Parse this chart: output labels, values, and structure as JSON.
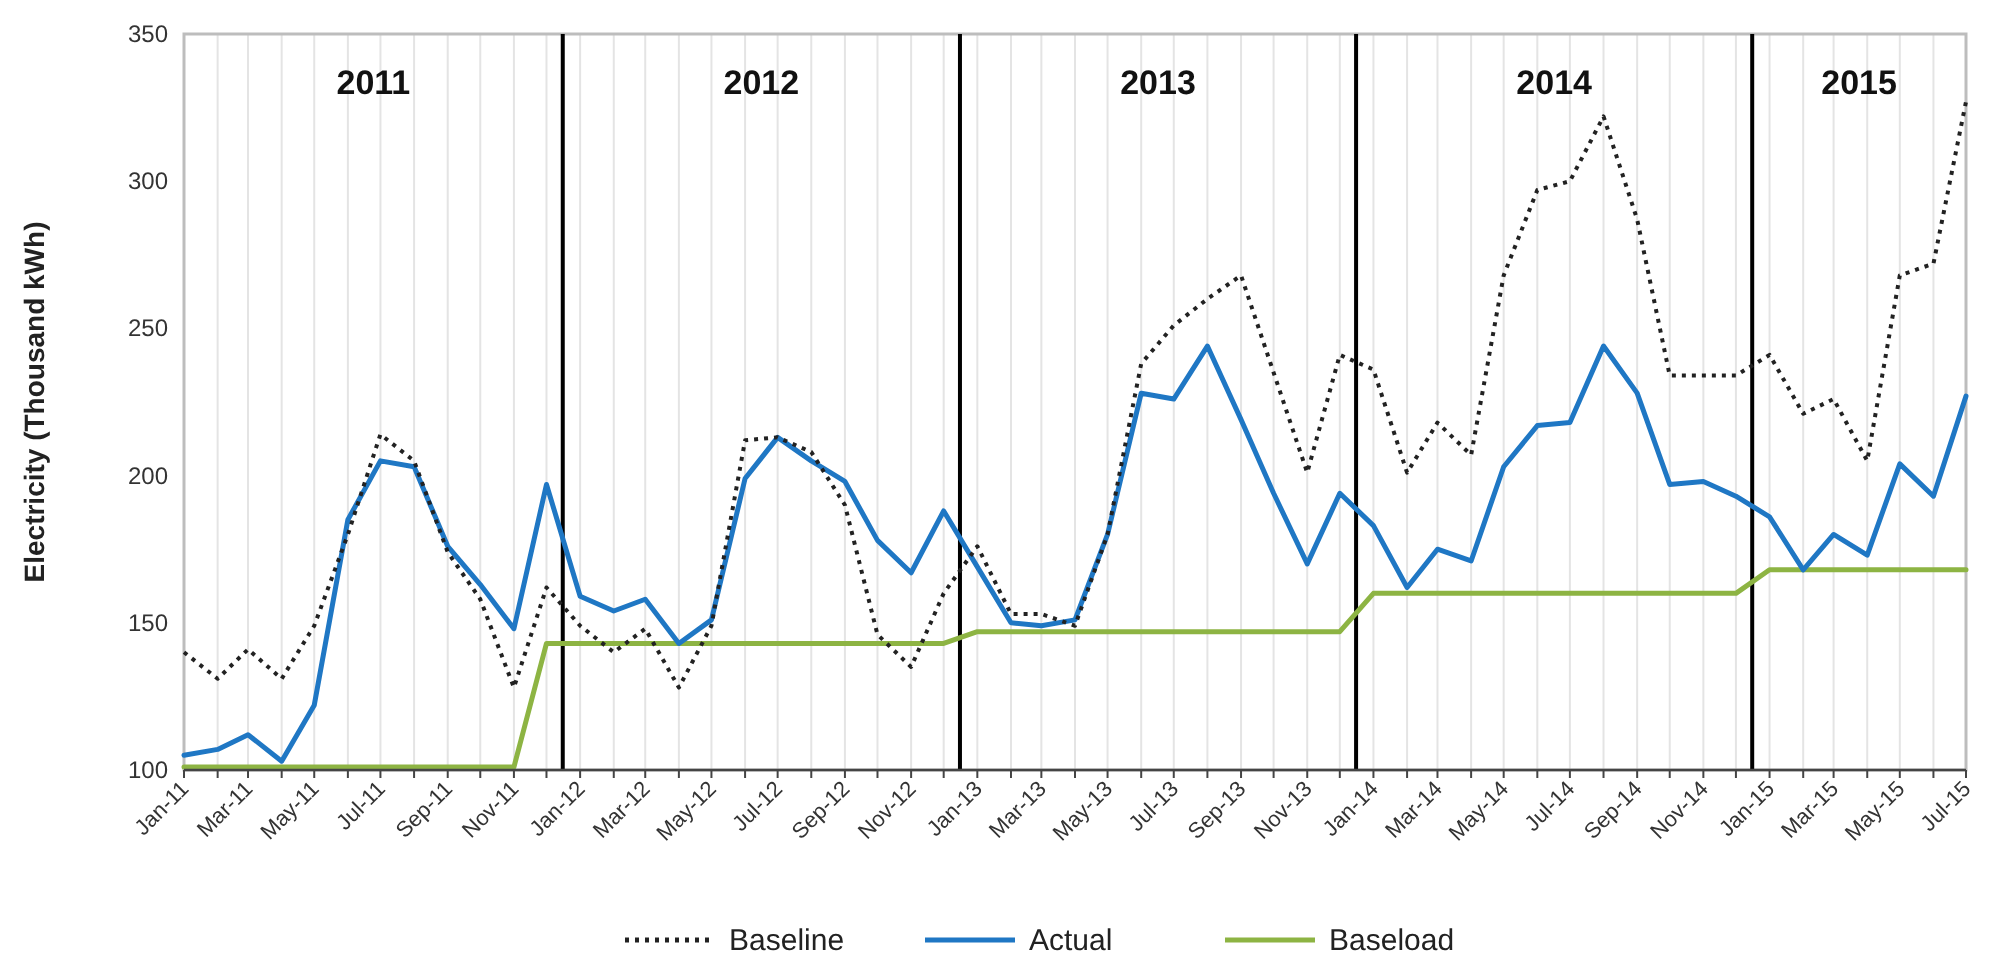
{
  "chart_data": {
    "type": "line",
    "ylabel": "Electricity (Thousand kWh)",
    "x": [
      "2011-01",
      "2011-02",
      "2011-03",
      "2011-04",
      "2011-05",
      "2011-06",
      "2011-07",
      "2011-08",
      "2011-09",
      "2011-10",
      "2011-11",
      "2011-12",
      "2012-01",
      "2012-02",
      "2012-03",
      "2012-04",
      "2012-05",
      "2012-06",
      "2012-07",
      "2012-08",
      "2012-09",
      "2012-10",
      "2012-11",
      "2012-12",
      "2013-01",
      "2013-02",
      "2013-03",
      "2013-04",
      "2013-05",
      "2013-06",
      "2013-07",
      "2013-08",
      "2013-09",
      "2013-10",
      "2013-11",
      "2013-12",
      "2014-01",
      "2014-02",
      "2014-03",
      "2014-04",
      "2014-05",
      "2014-06",
      "2014-07",
      "2014-08",
      "2014-09",
      "2014-10",
      "2014-11",
      "2014-12",
      "2015-01",
      "2015-02",
      "2015-03",
      "2015-04",
      "2015-05",
      "2015-06",
      "2015-07"
    ],
    "series": [
      {
        "name": "Baseline",
        "color": "#222222",
        "line_style": "dotted",
        "values": [
          140,
          131,
          141,
          131,
          149,
          180,
          214,
          205,
          174,
          158,
          128,
          162,
          149,
          140,
          148,
          128,
          149,
          212,
          213,
          208,
          190,
          146,
          135,
          160,
          176,
          153,
          153,
          149,
          180,
          238,
          251,
          260,
          268,
          235,
          201,
          241,
          236,
          201,
          218,
          207,
          268,
          297,
          300,
          322,
          287,
          234,
          234,
          234,
          241,
          221,
          226,
          205,
          268,
          272,
          327
        ]
      },
      {
        "name": "Actual",
        "color": "#1f77c4",
        "line_style": "solid",
        "values": [
          105,
          107,
          112,
          103,
          122,
          185,
          205,
          203,
          176,
          163,
          148,
          197,
          159,
          154,
          158,
          143,
          151,
          199,
          213,
          205,
          198,
          178,
          167,
          188,
          169,
          150,
          149,
          151,
          180,
          228,
          226,
          244,
          219,
          194,
          170,
          194,
          183,
          162,
          175,
          171,
          203,
          217,
          218,
          244,
          228,
          197,
          198,
          193,
          186,
          168,
          180,
          173,
          204,
          193,
          227
        ]
      },
      {
        "name": "Baseload",
        "color": "#8db443",
        "line_style": "solid",
        "values": [
          101,
          101,
          101,
          101,
          101,
          101,
          101,
          101,
          101,
          101,
          101,
          143,
          143,
          143,
          143,
          143,
          143,
          143,
          143,
          143,
          143,
          143,
          143,
          143,
          147,
          147,
          147,
          147,
          147,
          147,
          147,
          147,
          147,
          147,
          147,
          147,
          160,
          160,
          160,
          160,
          160,
          160,
          160,
          160,
          160,
          160,
          160,
          160,
          168,
          168,
          168,
          168,
          168,
          168,
          168
        ]
      }
    ],
    "xlim": [
      "2011-01",
      "2015-07"
    ],
    "xticks": [
      {
        "value": "2011-01",
        "label": "Jan-11"
      },
      {
        "value": "2011-02",
        "label": null
      },
      {
        "value": "2011-03",
        "label": "Mar-11"
      },
      {
        "value": "2011-04",
        "label": null
      },
      {
        "value": "2011-05",
        "label": "May-11"
      },
      {
        "value": "2011-06",
        "label": null
      },
      {
        "value": "2011-07",
        "label": "Jul-11"
      },
      {
        "value": "2011-08",
        "label": null
      },
      {
        "value": "2011-09",
        "label": "Sep-11"
      },
      {
        "value": "2011-10",
        "label": null
      },
      {
        "value": "2011-11",
        "label": "Nov-11"
      },
      {
        "value": "2011-12",
        "label": null
      },
      {
        "value": "2012-01",
        "label": "Jan-12"
      },
      {
        "value": "2012-02",
        "label": null
      },
      {
        "value": "2012-03",
        "label": "Mar-12"
      },
      {
        "value": "2012-04",
        "label": null
      },
      {
        "value": "2012-05",
        "label": "May-12"
      },
      {
        "value": "2012-06",
        "label": null
      },
      {
        "value": "2012-07",
        "label": "Jul-12"
      },
      {
        "value": "2012-08",
        "label": null
      },
      {
        "value": "2012-09",
        "label": "Sep-12"
      },
      {
        "value": "2012-10",
        "label": null
      },
      {
        "value": "2012-11",
        "label": "Nov-12"
      },
      {
        "value": "2012-12",
        "label": null
      },
      {
        "value": "2013-01",
        "label": "Jan-13"
      },
      {
        "value": "2013-02",
        "label": null
      },
      {
        "value": "2013-03",
        "label": "Mar-13"
      },
      {
        "value": "2013-04",
        "label": null
      },
      {
        "value": "2013-05",
        "label": "May-13"
      },
      {
        "value": "2013-06",
        "label": null
      },
      {
        "value": "2013-07",
        "label": "Jul-13"
      },
      {
        "value": "2013-08",
        "label": null
      },
      {
        "value": "2013-09",
        "label": "Sep-13"
      },
      {
        "value": "2013-10",
        "label": null
      },
      {
        "value": "2013-11",
        "label": "Nov-13"
      },
      {
        "value": "2013-12",
        "label": null
      },
      {
        "value": "2014-01",
        "label": "Jan-14"
      },
      {
        "value": "2014-02",
        "label": null
      },
      {
        "value": "2014-03",
        "label": "Mar-14"
      },
      {
        "value": "2014-04",
        "label": null
      },
      {
        "value": "2014-05",
        "label": "May-14"
      },
      {
        "value": "2014-06",
        "label": null
      },
      {
        "value": "2014-07",
        "label": "Jul-14"
      },
      {
        "value": "2014-08",
        "label": null
      },
      {
        "value": "2014-09",
        "label": "Sep-14"
      },
      {
        "value": "2014-10",
        "label": null
      },
      {
        "value": "2014-11",
        "label": "Nov-14"
      },
      {
        "value": "2014-12",
        "label": null
      },
      {
        "value": "2015-01",
        "label": "Jan-15"
      },
      {
        "value": "2015-02",
        "label": null
      },
      {
        "value": "2015-03",
        "label": "Mar-15"
      },
      {
        "value": "2015-04",
        "label": null
      },
      {
        "value": "2015-05",
        "label": "May-15"
      },
      {
        "value": "2015-06",
        "label": null
      },
      {
        "value": "2015-07",
        "label": "Jul-15"
      }
    ],
    "ylim": [
      100,
      350
    ],
    "yticks": [
      100,
      150,
      200,
      250,
      300,
      350
    ],
    "ref_lines": [
      {
        "axis": "x",
        "value": "2011-12-16",
        "color": "#000000"
      },
      {
        "axis": "x",
        "value": "2012-12-16",
        "color": "#000000"
      },
      {
        "axis": "x",
        "value": "2013-12-16",
        "color": "#000000"
      },
      {
        "axis": "x",
        "value": "2014-12-16",
        "color": "#000000"
      }
    ],
    "annotations": [
      "2011",
      "2012",
      "2013",
      "2014",
      "2015"
    ],
    "grid": "x",
    "legend": "bottom",
    "marker": "none"
  }
}
